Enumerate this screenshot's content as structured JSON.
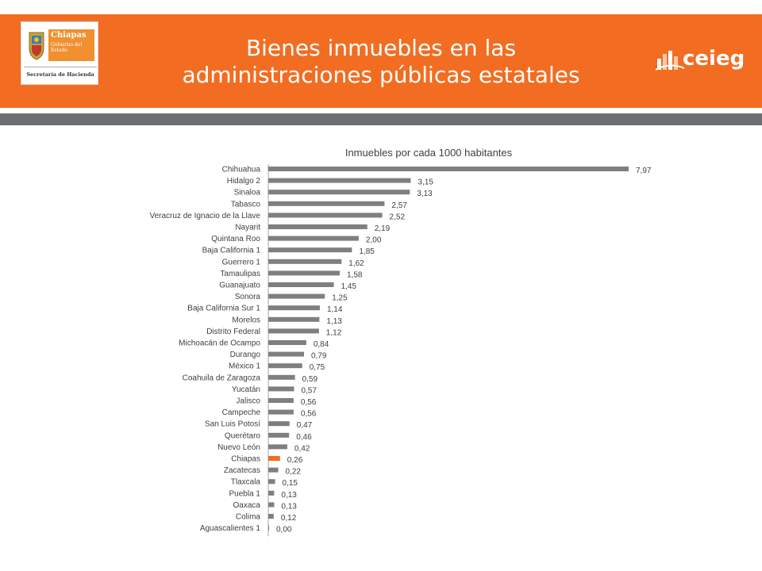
{
  "header": {
    "title_line1": "Bienes inmuebles en las",
    "title_line2": "administraciones públicas estatales",
    "accent_color": "#f26d21",
    "bar_color": "#6d6e71"
  },
  "logo_left": {
    "name": "Chiapas",
    "subtitle": "Gobierno del Estado",
    "department": "Secretaría de Hacienda",
    "icon": "state-shield-icon"
  },
  "logo_right": {
    "name": "ceieg",
    "icon": "ceieg-bars-icon"
  },
  "chart_data": {
    "type": "bar",
    "orientation": "horizontal",
    "title": "Inmuebles por cada 1000 habitantes",
    "xlim": [
      0,
      8
    ],
    "grid": false,
    "bar_color": "#7f7f7f",
    "highlight_color": "#f26d21",
    "highlight_category": "Chiapas",
    "categories": [
      "Chihuahua",
      "Hidalgo 2",
      "Sinaloa",
      "Tabasco",
      "Veracruz de Ignacio de la Llave",
      "Nayarit",
      "Quintana Roo",
      "Baja California 1",
      "Guerrero 1",
      "Tamaulipas",
      "Guanajuato",
      "Sonora",
      "Baja California Sur 1",
      "Morelos",
      "Distrito Federal",
      "Michoacán de Ocampo",
      "Durango",
      "México 1",
      "Coahuila de Zaragoza",
      "Yucatán",
      "Jalisco",
      "Campeche",
      "San Luis Potosí",
      "Querétaro",
      "Nuevo León",
      "Chiapas",
      "Zacatecas",
      "Tlaxcala",
      "Puebla 1",
      "Oaxaca",
      "Colima",
      "Aguascalientes 1"
    ],
    "values": [
      7.97,
      3.15,
      3.13,
      2.57,
      2.52,
      2.19,
      2.0,
      1.85,
      1.62,
      1.58,
      1.45,
      1.25,
      1.14,
      1.13,
      1.12,
      0.84,
      0.79,
      0.75,
      0.59,
      0.57,
      0.56,
      0.56,
      0.47,
      0.46,
      0.42,
      0.26,
      0.22,
      0.15,
      0.13,
      0.13,
      0.12,
      0.0
    ],
    "value_labels": [
      "7,97",
      "3,15",
      "3,13",
      "2,57",
      "2,52",
      "2,19",
      "2,00",
      "1,85",
      "1,62",
      "1,58",
      "1,45",
      "1,25",
      "1,14",
      "1,13",
      "1,12",
      "0,84",
      "0,79",
      "0,75",
      "0,59",
      "0,57",
      "0,56",
      "0,56",
      "0,47",
      "0,46",
      "0,42",
      "0,26",
      "0,22",
      "0,15",
      "0,13",
      "0,13",
      "0,12",
      "0,00"
    ]
  }
}
